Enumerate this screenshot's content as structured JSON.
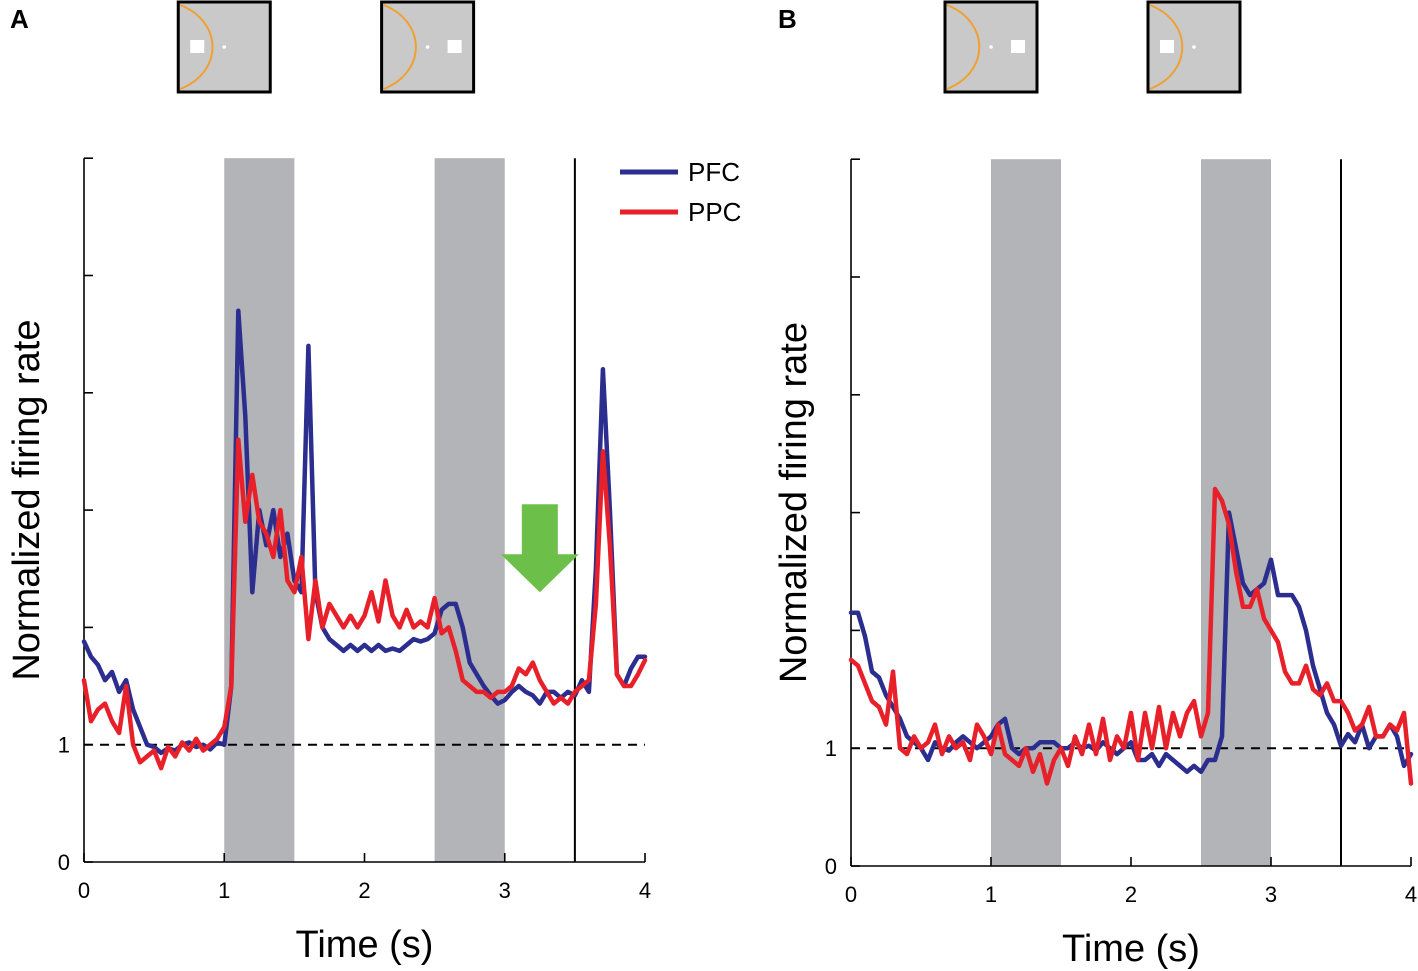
{
  "figure": {
    "panel_labels": [
      "A",
      "B"
    ],
    "legend": [
      {
        "name": "PFC",
        "color": "#2B2E8E"
      },
      {
        "name": "PPC",
        "color": "#E8202A"
      }
    ],
    "colors": {
      "shade": "#B3B4B7",
      "arrow": "#6CC04A",
      "stim_background": "#C9C9C9",
      "stim_arc": "#F0A030"
    }
  },
  "chart_data": [
    {
      "type": "line",
      "panel": "A",
      "xlabel": "Time (s)",
      "ylabel": "Normalized firing rate",
      "xlim": [
        0,
        4
      ],
      "ylim": [
        0,
        6
      ],
      "xticks": [
        0,
        1,
        2,
        3,
        4
      ],
      "yticks": [
        0,
        1,
        2,
        3,
        4,
        5,
        6
      ],
      "ytick_labels": {
        "0": "0",
        "1": "1"
      },
      "baseline": 1,
      "shaded_intervals": [
        [
          1,
          1.5
        ],
        [
          2.5,
          3
        ]
      ],
      "vertical_line": 3.5,
      "annotation": {
        "type": "down-arrow",
        "x": 3.25,
        "y_from": 3.05,
        "y_to": 2.3
      },
      "stimuli": [
        {
          "x_center": 1.0,
          "square_side": "left"
        },
        {
          "x_center": 2.45,
          "square_side": "right"
        }
      ],
      "series": [
        {
          "name": "PFC",
          "x": [
            0,
            0.05,
            0.1,
            0.15,
            0.2,
            0.25,
            0.3,
            0.35,
            0.4,
            0.45,
            0.5,
            0.55,
            0.6,
            0.65,
            0.7,
            0.75,
            0.8,
            0.85,
            0.9,
            0.95,
            1.0,
            1.05,
            1.1,
            1.15,
            1.2,
            1.25,
            1.3,
            1.35,
            1.4,
            1.45,
            1.5,
            1.55,
            1.6,
            1.65,
            1.7,
            1.75,
            1.8,
            1.85,
            1.9,
            1.95,
            2.0,
            2.05,
            2.1,
            2.15,
            2.2,
            2.25,
            2.3,
            2.35,
            2.4,
            2.45,
            2.5,
            2.55,
            2.6,
            2.65,
            2.7,
            2.75,
            2.8,
            2.85,
            2.9,
            2.95,
            3.0,
            3.05,
            3.1,
            3.15,
            3.2,
            3.25,
            3.3,
            3.35,
            3.4,
            3.45,
            3.5,
            3.55,
            3.6,
            3.65,
            3.7,
            3.75,
            3.8,
            3.85,
            3.9,
            3.95,
            4.0
          ],
          "y": [
            1.88,
            1.75,
            1.68,
            1.55,
            1.62,
            1.45,
            1.55,
            1.3,
            1.15,
            1.0,
            0.98,
            0.93,
            0.97,
            0.95,
            1.0,
            1.02,
            0.98,
            1.0,
            0.96,
            1.02,
            1.0,
            1.5,
            4.7,
            3.8,
            2.3,
            3.0,
            2.7,
            3.0,
            2.6,
            2.8,
            2.4,
            2.3,
            4.4,
            2.3,
            2.0,
            1.9,
            1.85,
            1.8,
            1.85,
            1.8,
            1.85,
            1.8,
            1.85,
            1.8,
            1.82,
            1.8,
            1.85,
            1.9,
            1.88,
            1.9,
            1.95,
            2.15,
            2.2,
            2.2,
            2.0,
            1.7,
            1.6,
            1.5,
            1.42,
            1.35,
            1.38,
            1.45,
            1.5,
            1.45,
            1.42,
            1.35,
            1.45,
            1.45,
            1.4,
            1.45,
            1.42,
            1.55,
            1.45,
            2.5,
            4.2,
            3.0,
            1.6,
            1.5,
            1.65,
            1.75,
            1.75
          ]
        },
        {
          "name": "PPC",
          "x": [
            0,
            0.05,
            0.1,
            0.15,
            0.2,
            0.25,
            0.3,
            0.35,
            0.4,
            0.45,
            0.5,
            0.55,
            0.6,
            0.65,
            0.7,
            0.75,
            0.8,
            0.85,
            0.9,
            0.95,
            1.0,
            1.05,
            1.1,
            1.15,
            1.2,
            1.25,
            1.3,
            1.35,
            1.4,
            1.45,
            1.5,
            1.55,
            1.6,
            1.65,
            1.7,
            1.75,
            1.8,
            1.85,
            1.9,
            1.95,
            2.0,
            2.05,
            2.1,
            2.15,
            2.2,
            2.25,
            2.3,
            2.35,
            2.4,
            2.45,
            2.5,
            2.55,
            2.6,
            2.65,
            2.7,
            2.75,
            2.8,
            2.85,
            2.9,
            2.95,
            3.0,
            3.05,
            3.1,
            3.15,
            3.2,
            3.25,
            3.3,
            3.35,
            3.4,
            3.45,
            3.5,
            3.55,
            3.6,
            3.65,
            3.7,
            3.75,
            3.8,
            3.85,
            3.9,
            3.95,
            4.0
          ],
          "y": [
            1.55,
            1.2,
            1.3,
            1.35,
            1.2,
            1.1,
            1.5,
            1.0,
            0.85,
            0.9,
            0.95,
            0.8,
            0.98,
            0.9,
            1.02,
            0.95,
            1.05,
            0.95,
            1.0,
            1.05,
            1.15,
            1.5,
            3.6,
            2.9,
            3.3,
            2.9,
            2.8,
            2.6,
            3.0,
            2.4,
            2.3,
            2.6,
            1.9,
            2.4,
            2.0,
            2.2,
            2.1,
            2.0,
            2.1,
            2.0,
            2.1,
            2.3,
            2.05,
            2.4,
            2.1,
            2.0,
            2.15,
            2.0,
            2.05,
            2.0,
            2.25,
            1.95,
            2.0,
            1.8,
            1.55,
            1.5,
            1.45,
            1.45,
            1.4,
            1.45,
            1.45,
            1.5,
            1.65,
            1.6,
            1.7,
            1.55,
            1.45,
            1.35,
            1.4,
            1.35,
            1.45,
            1.5,
            1.55,
            2.2,
            3.5,
            2.7,
            1.6,
            1.5,
            1.5,
            1.6,
            1.72
          ]
        }
      ]
    },
    {
      "type": "line",
      "panel": "B",
      "xlabel": "Time (s)",
      "ylabel": "Normalized firing rate",
      "xlim": [
        0,
        4
      ],
      "ylim": [
        0,
        6
      ],
      "xticks": [
        0,
        1,
        2,
        3,
        4
      ],
      "yticks": [
        0,
        1,
        2,
        3,
        4,
        5,
        6
      ],
      "ytick_labels": {
        "0": "0",
        "1": "1"
      },
      "baseline": 1,
      "shaded_intervals": [
        [
          1,
          1.5
        ],
        [
          2.5,
          3
        ]
      ],
      "vertical_line": 3.5,
      "stimuli": [
        {
          "x_center": 1.0,
          "square_side": "right"
        },
        {
          "x_center": 2.45,
          "square_side": "left"
        }
      ],
      "series": [
        {
          "name": "PFC",
          "x": [
            0,
            0.05,
            0.1,
            0.15,
            0.2,
            0.25,
            0.3,
            0.35,
            0.4,
            0.45,
            0.5,
            0.55,
            0.6,
            0.65,
            0.7,
            0.75,
            0.8,
            0.85,
            0.9,
            0.95,
            1.0,
            1.05,
            1.1,
            1.15,
            1.2,
            1.25,
            1.3,
            1.35,
            1.4,
            1.45,
            1.5,
            1.55,
            1.6,
            1.65,
            1.7,
            1.75,
            1.8,
            1.85,
            1.9,
            1.95,
            2.0,
            2.05,
            2.1,
            2.15,
            2.2,
            2.25,
            2.3,
            2.35,
            2.4,
            2.45,
            2.5,
            2.55,
            2.6,
            2.65,
            2.7,
            2.75,
            2.8,
            2.85,
            2.9,
            2.95,
            3.0,
            3.05,
            3.1,
            3.15,
            3.2,
            3.25,
            3.3,
            3.35,
            3.4,
            3.45,
            3.5,
            3.55,
            3.6,
            3.65,
            3.7,
            3.75,
            3.8,
            3.85,
            3.9,
            3.95,
            4.0
          ],
          "y": [
            2.15,
            2.15,
            1.95,
            1.65,
            1.6,
            1.45,
            1.35,
            1.25,
            1.1,
            1.05,
            1.0,
            0.9,
            1.05,
            1.0,
            0.98,
            1.05,
            1.1,
            1.05,
            1.0,
            1.05,
            1.1,
            1.2,
            1.25,
            1.0,
            0.95,
            1.0,
            1.0,
            1.05,
            1.05,
            1.05,
            1.0,
            1.0,
            1.05,
            1.0,
            1.02,
            0.98,
            1.05,
            1.0,
            0.95,
            1.0,
            1.05,
            0.9,
            0.9,
            0.95,
            0.85,
            0.95,
            0.9,
            0.85,
            0.8,
            0.85,
            0.8,
            0.9,
            0.9,
            1.1,
            3.0,
            2.7,
            2.4,
            2.3,
            2.35,
            2.4,
            2.6,
            2.3,
            2.3,
            2.3,
            2.2,
            2.0,
            1.7,
            1.5,
            1.3,
            1.2,
            1.02,
            1.12,
            1.05,
            1.2,
            1.0,
            1.1,
            1.1,
            1.2,
            1.1,
            0.85,
            0.95
          ]
        },
        {
          "name": "PPC",
          "x": [
            0,
            0.05,
            0.1,
            0.15,
            0.2,
            0.25,
            0.3,
            0.35,
            0.4,
            0.45,
            0.5,
            0.55,
            0.6,
            0.65,
            0.7,
            0.75,
            0.8,
            0.85,
            0.9,
            0.95,
            1.0,
            1.05,
            1.1,
            1.15,
            1.2,
            1.25,
            1.3,
            1.35,
            1.4,
            1.45,
            1.5,
            1.55,
            1.6,
            1.65,
            1.7,
            1.75,
            1.8,
            1.85,
            1.9,
            1.95,
            2.0,
            2.05,
            2.1,
            2.15,
            2.2,
            2.25,
            2.3,
            2.35,
            2.4,
            2.45,
            2.5,
            2.55,
            2.6,
            2.65,
            2.7,
            2.75,
            2.8,
            2.85,
            2.9,
            2.95,
            3.0,
            3.05,
            3.1,
            3.15,
            3.2,
            3.25,
            3.3,
            3.35,
            3.4,
            3.45,
            3.5,
            3.55,
            3.6,
            3.65,
            3.7,
            3.75,
            3.8,
            3.85,
            3.9,
            3.95,
            4.0
          ],
          "y": [
            1.75,
            1.7,
            1.55,
            1.4,
            1.35,
            1.2,
            1.65,
            1.0,
            0.95,
            1.1,
            1.0,
            1.05,
            1.2,
            0.95,
            1.1,
            1.0,
            1.05,
            0.9,
            1.2,
            1.1,
            0.95,
            1.2,
            0.95,
            0.9,
            0.85,
            1.0,
            0.8,
            0.95,
            0.7,
            0.9,
            1.0,
            0.85,
            1.1,
            0.95,
            1.2,
            0.95,
            1.25,
            0.9,
            1.1,
            1.0,
            1.3,
            0.9,
            1.3,
            1.0,
            1.35,
            1.0,
            1.3,
            1.1,
            1.3,
            1.4,
            1.1,
            1.3,
            3.2,
            3.1,
            2.9,
            2.5,
            2.2,
            2.2,
            2.35,
            2.1,
            2.0,
            1.9,
            1.65,
            1.55,
            1.55,
            1.7,
            1.5,
            1.45,
            1.55,
            1.4,
            1.4,
            1.3,
            1.15,
            1.2,
            1.35,
            1.1,
            1.1,
            1.2,
            1.15,
            1.3,
            0.7
          ]
        }
      ]
    }
  ]
}
